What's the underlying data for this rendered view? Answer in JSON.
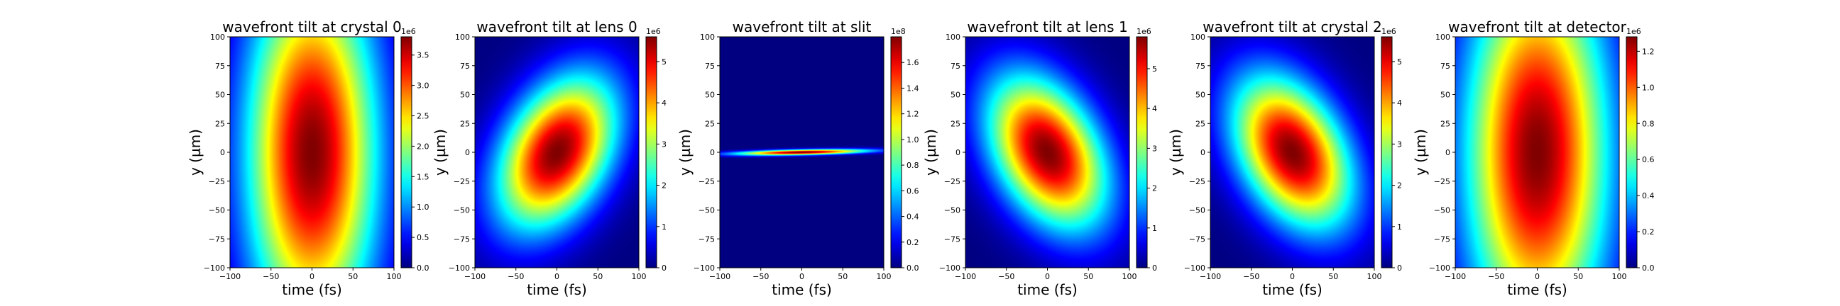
{
  "chart_data": [
    {
      "type": "heatmap",
      "title": "wavefront tilt at crystal 0",
      "xlabel": "time (fs)",
      "ylabel": "y (µm)",
      "xlim": [
        -100,
        100
      ],
      "ylim": [
        -100,
        100
      ],
      "x_ticks": [
        "−100",
        "−50",
        "0",
        "50",
        "100"
      ],
      "y_ticks": [
        "100",
        "75",
        "50",
        "25",
        "0",
        "−25",
        "−50",
        "−75",
        "−100"
      ],
      "colorbar": {
        "min": 0,
        "max": 3.8,
        "ticks": [
          "0.0",
          "0.5",
          "1.0",
          "1.5",
          "2.0",
          "2.5",
          "3.0",
          "3.5"
        ],
        "tick_values": [
          0,
          0.5,
          1.0,
          1.5,
          2.0,
          2.5,
          3.0,
          3.5
        ],
        "exponent": "1e6"
      },
      "beam": {
        "center_t": 0,
        "center_y": 0,
        "width_t": 55,
        "width_y": 110,
        "tilt": 0
      },
      "colormap": "jet"
    },
    {
      "type": "heatmap",
      "title": "wavefront tilt at lens 0",
      "xlabel": "time (fs)",
      "ylabel": "y (µm)",
      "xlim": [
        -100,
        100
      ],
      "ylim": [
        -100,
        100
      ],
      "x_ticks": [
        "−100",
        "−50",
        "0",
        "50",
        "100"
      ],
      "y_ticks": [
        "100",
        "75",
        "50",
        "25",
        "0",
        "−25",
        "−50",
        "−75",
        "−100"
      ],
      "colorbar": {
        "min": 0,
        "max": 5.6,
        "ticks": [
          "0",
          "1",
          "2",
          "3",
          "4",
          "5"
        ],
        "tick_values": [
          0,
          1,
          2,
          3,
          4,
          5
        ],
        "exponent": "1e6"
      },
      "beam": {
        "center_t": 0,
        "center_y": 0,
        "width_t": 50,
        "width_y": 42,
        "tilt": 0.35
      },
      "colormap": "jet"
    },
    {
      "type": "heatmap",
      "title": "wavefront tilt at slit",
      "xlabel": "time (fs)",
      "ylabel": "y (µm)",
      "xlim": [
        -100,
        100
      ],
      "ylim": [
        -100,
        100
      ],
      "x_ticks": [
        "−100",
        "−50",
        "0",
        "50",
        "100"
      ],
      "y_ticks": [
        "100",
        "75",
        "50",
        "25",
        "0",
        "−25",
        "−50",
        "−75",
        "−100"
      ],
      "colorbar": {
        "min": 0,
        "max": 1.8,
        "ticks": [
          "0.0",
          "0.2",
          "0.4",
          "0.6",
          "0.8",
          "1.0",
          "1.2",
          "1.4",
          "1.6"
        ],
        "tick_values": [
          0,
          0.2,
          0.4,
          0.6,
          0.8,
          1.0,
          1.2,
          1.4,
          1.6
        ],
        "exponent": "1e8"
      },
      "beam": {
        "center_t": 0,
        "center_y": 0,
        "width_t": 55,
        "width_y": 1.6,
        "tilt": 0.015
      },
      "colormap": "jet"
    },
    {
      "type": "heatmap",
      "title": "wavefront tilt at lens 1",
      "xlabel": "time (fs)",
      "ylabel": "y (µm)",
      "xlim": [
        -100,
        100
      ],
      "ylim": [
        -100,
        100
      ],
      "x_ticks": [
        "−100",
        "−50",
        "0",
        "50",
        "100"
      ],
      "y_ticks": [
        "100",
        "75",
        "50",
        "25",
        "0",
        "−25",
        "−50",
        "−75",
        "−100"
      ],
      "colorbar": {
        "min": 0,
        "max": 5.8,
        "ticks": [
          "0",
          "1",
          "2",
          "3",
          "4",
          "5"
        ],
        "tick_values": [
          0,
          1,
          2,
          3,
          4,
          5
        ],
        "exponent": "1e6"
      },
      "beam": {
        "center_t": 0,
        "center_y": 0,
        "width_t": 50,
        "width_y": 42,
        "tilt": -0.35
      },
      "colormap": "jet"
    },
    {
      "type": "heatmap",
      "title": "wavefront tilt at crystal 2",
      "xlabel": "time (fs)",
      "ylabel": "y (µm)",
      "xlim": [
        -100,
        100
      ],
      "ylim": [
        -100,
        100
      ],
      "x_ticks": [
        "−100",
        "−50",
        "0",
        "50",
        "100"
      ],
      "y_ticks": [
        "100",
        "75",
        "50",
        "25",
        "0",
        "−25",
        "−50",
        "−75",
        "−100"
      ],
      "colorbar": {
        "min": 0,
        "max": 5.6,
        "ticks": [
          "0",
          "1",
          "2",
          "3",
          "4",
          "5"
        ],
        "tick_values": [
          0,
          1,
          2,
          3,
          4,
          5
        ],
        "exponent": "1e6"
      },
      "beam": {
        "center_t": 0,
        "center_y": 0,
        "width_t": 50,
        "width_y": 42,
        "tilt": -0.35
      },
      "colormap": "jet"
    },
    {
      "type": "heatmap",
      "title": "wavefront tilt at detector",
      "xlabel": "time (fs)",
      "ylabel": "y (µm)",
      "xlim": [
        -100,
        100
      ],
      "ylim": [
        -100,
        100
      ],
      "x_ticks": [
        "−100",
        "−50",
        "0",
        "50",
        "100"
      ],
      "y_ticks": [
        "100",
        "75",
        "50",
        "25",
        "0",
        "−25",
        "−50",
        "−75",
        "−100"
      ],
      "colorbar": {
        "min": 0,
        "max": 1.28,
        "ticks": [
          "0.0",
          "0.2",
          "0.4",
          "0.6",
          "0.8",
          "1.0",
          "1.2"
        ],
        "tick_values": [
          0,
          0.2,
          0.4,
          0.6,
          0.8,
          1.0,
          1.2
        ],
        "exponent": "1e6"
      },
      "beam": {
        "center_t": 0,
        "center_y": 0,
        "width_t": 60,
        "width_y": 115,
        "tilt": 0
      },
      "colormap": "jet"
    }
  ]
}
